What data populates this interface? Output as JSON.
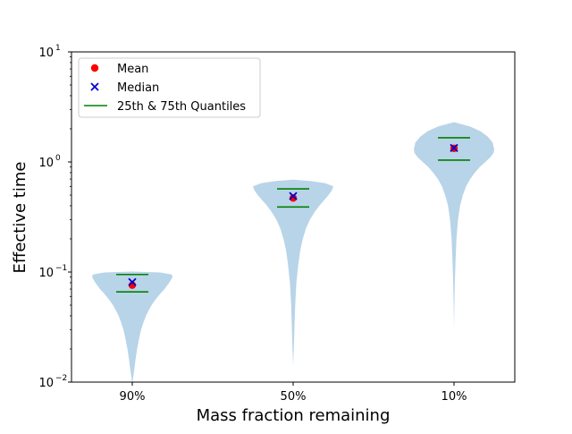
{
  "chart_data": {
    "type": "violin",
    "title": "",
    "xlabel": "Mass fraction remaining",
    "ylabel": "Effective time",
    "yscale": "log",
    "ylim": [
      0.01,
      10
    ],
    "y_ticks": [
      {
        "value": 0.01,
        "base": "10",
        "exp": "−2"
      },
      {
        "value": 0.1,
        "base": "10",
        "exp": "−1"
      },
      {
        "value": 1,
        "base": "10",
        "exp": "0"
      },
      {
        "value": 10,
        "base": "10",
        "exp": "1"
      }
    ],
    "categories": [
      "90%",
      "50%",
      "10%"
    ],
    "violins": [
      {
        "category": "90%",
        "min": 0.0095,
        "max": 0.101,
        "mean": 0.076,
        "median": 0.081,
        "q25": 0.066,
        "q75": 0.095,
        "profile": [
          [
            0.0095,
            0.0
          ],
          [
            0.011,
            0.02
          ],
          [
            0.013,
            0.05
          ],
          [
            0.016,
            0.08
          ],
          [
            0.02,
            0.12
          ],
          [
            0.025,
            0.17
          ],
          [
            0.03,
            0.22
          ],
          [
            0.035,
            0.28
          ],
          [
            0.04,
            0.34
          ],
          [
            0.045,
            0.41
          ],
          [
            0.05,
            0.48
          ],
          [
            0.055,
            0.56
          ],
          [
            0.06,
            0.64
          ],
          [
            0.065,
            0.72
          ],
          [
            0.07,
            0.8
          ],
          [
            0.075,
            0.86
          ],
          [
            0.08,
            0.92
          ],
          [
            0.085,
            0.96
          ],
          [
            0.09,
            1.0
          ],
          [
            0.095,
            0.98
          ],
          [
            0.099,
            0.7
          ],
          [
            0.101,
            0.0
          ]
        ]
      },
      {
        "category": "50%",
        "min": 0.014,
        "max": 0.69,
        "mean": 0.47,
        "median": 0.49,
        "q25": 0.39,
        "q75": 0.57,
        "profile": [
          [
            0.014,
            0.0
          ],
          [
            0.02,
            0.015
          ],
          [
            0.03,
            0.03
          ],
          [
            0.05,
            0.05
          ],
          [
            0.08,
            0.08
          ],
          [
            0.12,
            0.13
          ],
          [
            0.16,
            0.18
          ],
          [
            0.2,
            0.24
          ],
          [
            0.25,
            0.32
          ],
          [
            0.3,
            0.42
          ],
          [
            0.35,
            0.53
          ],
          [
            0.4,
            0.65
          ],
          [
            0.45,
            0.77
          ],
          [
            0.5,
            0.88
          ],
          [
            0.55,
            0.96
          ],
          [
            0.6,
            1.0
          ],
          [
            0.64,
            0.8
          ],
          [
            0.67,
            0.45
          ],
          [
            0.69,
            0.0
          ]
        ]
      },
      {
        "category": "10%",
        "min": 0.03,
        "max": 2.3,
        "mean": 1.33,
        "median": 1.34,
        "q25": 1.04,
        "q75": 1.66,
        "profile": [
          [
            0.03,
            0.0
          ],
          [
            0.05,
            0.01
          ],
          [
            0.08,
            0.02
          ],
          [
            0.12,
            0.035
          ],
          [
            0.2,
            0.06
          ],
          [
            0.3,
            0.1
          ],
          [
            0.4,
            0.15
          ],
          [
            0.5,
            0.22
          ],
          [
            0.6,
            0.3
          ],
          [
            0.7,
            0.4
          ],
          [
            0.8,
            0.52
          ],
          [
            0.9,
            0.64
          ],
          [
            1.0,
            0.78
          ],
          [
            1.1,
            0.9
          ],
          [
            1.2,
            0.98
          ],
          [
            1.3,
            1.0
          ],
          [
            1.5,
            0.96
          ],
          [
            1.7,
            0.84
          ],
          [
            1.9,
            0.66
          ],
          [
            2.1,
            0.4
          ],
          [
            2.3,
            0.0
          ]
        ]
      }
    ],
    "legend": {
      "placement": "upper-left",
      "entries": [
        {
          "label": "Mean",
          "marker": "dot",
          "color": "#ff0000"
        },
        {
          "label": "Median",
          "marker": "x",
          "color": "#0000cc"
        },
        {
          "label": "25th & 75th Quantiles",
          "marker": "line",
          "color": "#008000"
        }
      ]
    },
    "colors": {
      "violin_fill": "#b8d4e8",
      "mean": "#ff0000",
      "median": "#0000cc",
      "quantile": "#008000"
    }
  }
}
